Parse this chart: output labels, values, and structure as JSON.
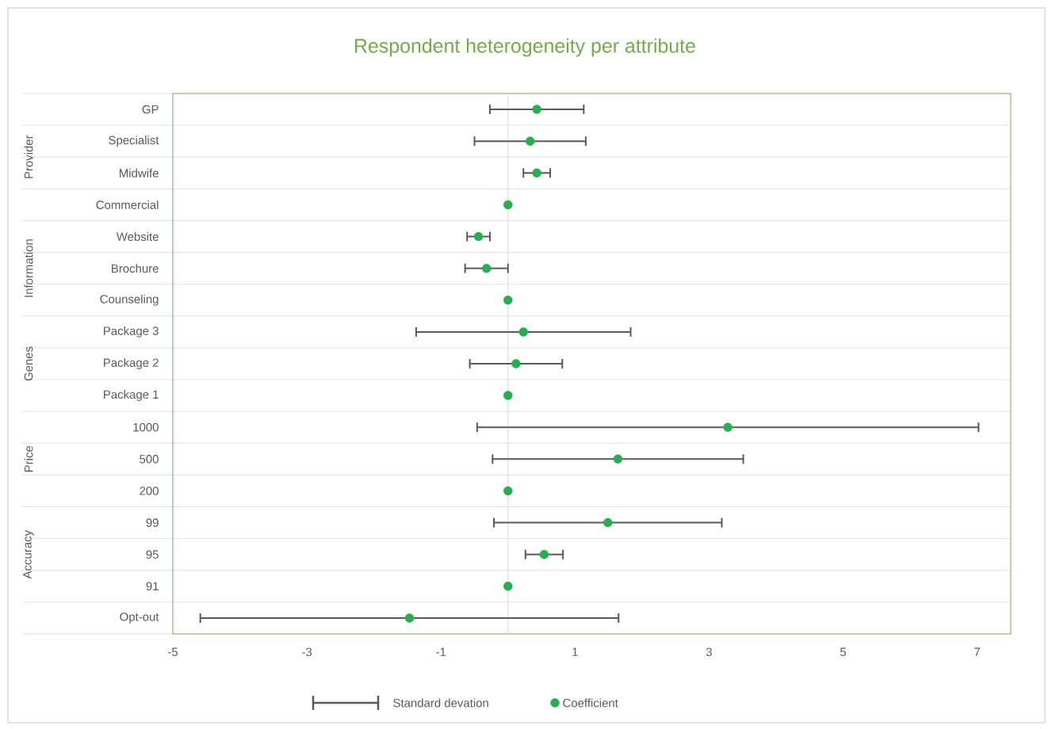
{
  "chart_data": {
    "type": "scatter",
    "orientation": "horizontal",
    "title": "Respondent heterogeneity per attribute",
    "categories": [
      "GP",
      "Specialist",
      "Midwife",
      "Commercial",
      "Website",
      "Brochure",
      "Counseling",
      "Package 3",
      "Package 2",
      "Package 1",
      "1000",
      "500",
      "200",
      "99",
      "95",
      "91",
      "Opt-out"
    ],
    "series": [
      {
        "name": "Coefficient",
        "color": "#22b14c",
        "values": [
          0.43,
          0.33,
          0.43,
          0,
          -0.44,
          -0.32,
          0,
          0.23,
          0.12,
          0,
          3.28,
          1.64,
          0,
          1.49,
          0.54,
          0,
          -1.47
        ],
        "errors": [
          0.7,
          0.83,
          0.2,
          null,
          0.17,
          0.32,
          null,
          1.6,
          0.69,
          null,
          3.74,
          1.87,
          null,
          1.7,
          0.28,
          null,
          3.12
        ]
      }
    ],
    "xlim": [
      -5,
      7.5
    ],
    "xticks": [
      -5,
      -3,
      -1,
      1,
      3,
      5,
      7
    ],
    "grid": "y",
    "marker": "circle",
    "legend": "bottom",
    "ref_lines": [
      {
        "axis": "x",
        "value": 0,
        "color": "#d9d9d9"
      }
    ],
    "annotations": [
      "Standard devation",
      "Provider",
      "Information",
      "Genes",
      "Price",
      "Accuracy"
    ]
  }
}
